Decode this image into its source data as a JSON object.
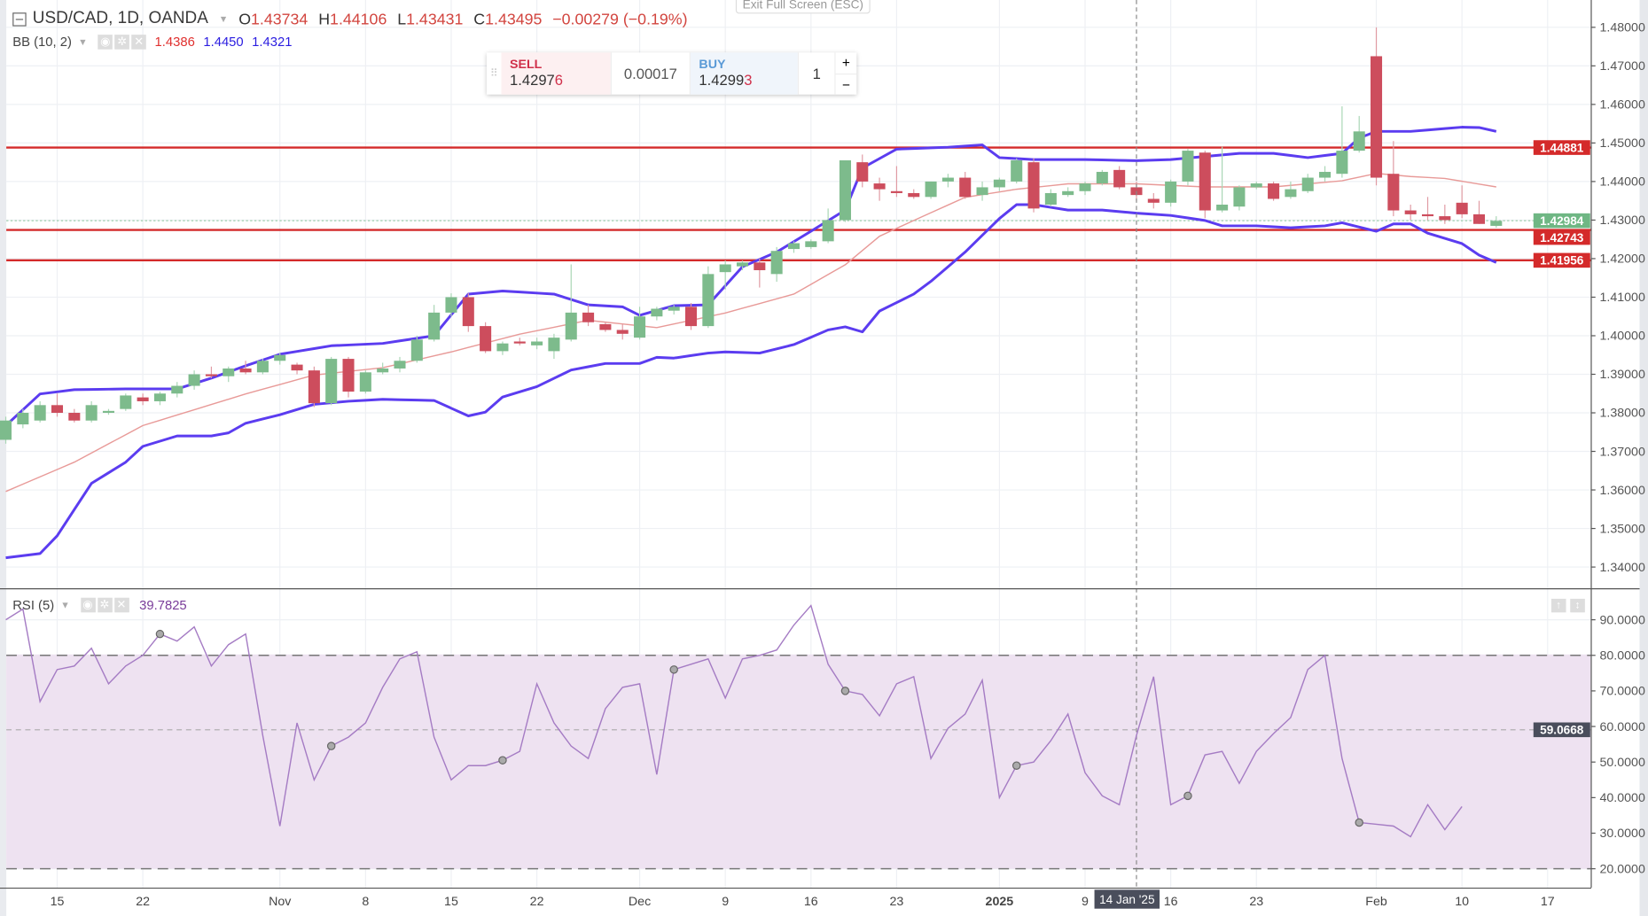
{
  "header": {
    "symbol": "USD/CAD, 1D, OANDA",
    "o_label": "O",
    "o": "1.43734",
    "h_label": "H",
    "h": "1.44106",
    "l_label": "L",
    "l": "1.43431",
    "c_label": "C",
    "c": "1.43495",
    "change": "−0.00279 (−0.19%)"
  },
  "exit_fullscreen": "Exit Full Screen (ESC)",
  "bb_legend": {
    "label": "BB (10, 2)",
    "mid": "1.4386",
    "upper": "1.4450",
    "lower": "1.4321"
  },
  "trade": {
    "sell_label": "SELL",
    "sell_main": "1.4297",
    "sell_last": "6",
    "spread": "0.00017",
    "buy_label": "BUY",
    "buy_main": "1.4299",
    "buy_last": "3",
    "qty": "1",
    "plus": "+",
    "minus": "−"
  },
  "colors": {
    "up": "#7dbb8c",
    "down": "#cd4d5d",
    "bb_band": "#5b3cf0",
    "bb_mid": "#e89a98",
    "level": "#d42a2a",
    "current": "#6fb784",
    "rsi_line": "#a57cc4",
    "rsi_fill": "#eee2f1"
  },
  "price_axis": [
    "1.48000",
    "1.47000",
    "1.46000",
    "1.45000",
    "1.44000",
    "1.43000",
    "1.42000",
    "1.41000",
    "1.40000",
    "1.39000",
    "1.38000",
    "1.37000",
    "1.36000",
    "1.35000",
    "1.34000"
  ],
  "levels": [
    {
      "value": 1.44881,
      "label": "1.44881"
    },
    {
      "value": 1.42743,
      "label": "1.42743"
    },
    {
      "value": 1.41956,
      "label": "1.41956"
    }
  ],
  "current_price": {
    "value": 1.42984,
    "label": "1.42984"
  },
  "candles": [
    [
      1.373,
      1.379,
      1.372,
      1.378
    ],
    [
      1.377,
      1.381,
      1.376,
      1.38
    ],
    [
      1.378,
      1.383,
      1.3775,
      1.382
    ],
    [
      1.382,
      1.385,
      1.379,
      1.38
    ],
    [
      1.38,
      1.381,
      1.3775,
      1.378
    ],
    [
      1.378,
      1.383,
      1.3775,
      1.382
    ],
    [
      1.38,
      1.381,
      1.3795,
      1.3805
    ],
    [
      1.381,
      1.385,
      1.3805,
      1.3845
    ],
    [
      1.384,
      1.385,
      1.382,
      1.383
    ],
    [
      1.383,
      1.3855,
      1.382,
      1.385
    ],
    [
      1.385,
      1.388,
      1.384,
      1.387
    ],
    [
      1.387,
      1.391,
      1.386,
      1.39
    ],
    [
      1.39,
      1.392,
      1.389,
      1.3895
    ],
    [
      1.3895,
      1.392,
      1.388,
      1.3915
    ],
    [
      1.3915,
      1.3935,
      1.39,
      1.3905
    ],
    [
      1.3905,
      1.394,
      1.39,
      1.3935
    ],
    [
      1.3935,
      1.3955,
      1.3925,
      1.395
    ],
    [
      1.3925,
      1.393,
      1.39,
      1.391
    ],
    [
      1.391,
      1.392,
      1.3815,
      1.3825
    ],
    [
      1.3825,
      1.3945,
      1.382,
      1.394
    ],
    [
      1.394,
      1.3945,
      1.384,
      1.3855
    ],
    [
      1.3855,
      1.391,
      1.385,
      1.3905
    ],
    [
      1.3905,
      1.393,
      1.39,
      1.3915
    ],
    [
      1.3915,
      1.3945,
      1.3905,
      1.3935
    ],
    [
      1.3935,
      1.4,
      1.393,
      1.399
    ],
    [
      1.399,
      1.408,
      1.3985,
      1.406
    ],
    [
      1.406,
      1.411,
      1.405,
      1.41
    ],
    [
      1.41,
      1.411,
      1.401,
      1.4025
    ],
    [
      1.4025,
      1.4035,
      1.3955,
      1.396
    ],
    [
      1.396,
      1.3985,
      1.395,
      1.398
    ],
    [
      1.3985,
      1.3995,
      1.3975,
      1.398
    ],
    [
      1.3975,
      1.3995,
      1.3965,
      1.3985
    ],
    [
      1.396,
      1.4005,
      1.394,
      1.3995
    ],
    [
      1.399,
      1.4185,
      1.3985,
      1.406
    ],
    [
      1.406,
      1.408,
      1.4025,
      1.4035
    ],
    [
      1.403,
      1.4035,
      1.401,
      1.4015
    ],
    [
      1.4015,
      1.403,
      1.399,
      1.4005
    ],
    [
      1.3995,
      1.4075,
      1.399,
      1.405
    ],
    [
      1.405,
      1.4075,
      1.404,
      1.407
    ],
    [
      1.4065,
      1.408,
      1.4055,
      1.4075
    ],
    [
      1.4075,
      1.4085,
      1.4015,
      1.4025
    ],
    [
      1.4025,
      1.418,
      1.402,
      1.416
    ],
    [
      1.4165,
      1.4195,
      1.412,
      1.4185
    ],
    [
      1.418,
      1.4195,
      1.417,
      1.419
    ],
    [
      1.419,
      1.42,
      1.4125,
      1.417
    ],
    [
      1.416,
      1.423,
      1.414,
      1.422
    ],
    [
      1.4225,
      1.4245,
      1.4215,
      1.424
    ],
    [
      1.423,
      1.425,
      1.4225,
      1.4245
    ],
    [
      1.4245,
      1.433,
      1.424,
      1.43
    ],
    [
      1.43,
      1.4455,
      1.4295,
      1.4455
    ],
    [
      1.445,
      1.447,
      1.4385,
      1.44
    ],
    [
      1.4395,
      1.441,
      1.435,
      1.438
    ],
    [
      1.4375,
      1.444,
      1.436,
      1.437
    ],
    [
      1.437,
      1.438,
      1.4355,
      1.436
    ],
    [
      1.436,
      1.44,
      1.4355,
      1.44
    ],
    [
      1.44,
      1.442,
      1.4385,
      1.441
    ],
    [
      1.441,
      1.4425,
      1.4355,
      1.436
    ],
    [
      1.4365,
      1.44,
      1.435,
      1.4385
    ],
    [
      1.4385,
      1.441,
      1.4375,
      1.4405
    ],
    [
      1.44,
      1.446,
      1.4395,
      1.4455
    ],
    [
      1.445,
      1.446,
      1.432,
      1.433
    ],
    [
      1.434,
      1.438,
      1.4335,
      1.437
    ],
    [
      1.4365,
      1.4385,
      1.436,
      1.4375
    ],
    [
      1.4375,
      1.44,
      1.4365,
      1.4395
    ],
    [
      1.4395,
      1.443,
      1.439,
      1.4425
    ],
    [
      1.443,
      1.444,
      1.438,
      1.4385
    ],
    [
      1.4385,
      1.44,
      1.435,
      1.4365
    ],
    [
      1.4355,
      1.437,
      1.433,
      1.4345
    ],
    [
      1.4345,
      1.4405,
      1.4335,
      1.44
    ],
    [
      1.44,
      1.4485,
      1.439,
      1.448
    ],
    [
      1.4475,
      1.448,
      1.4305,
      1.4325
    ],
    [
      1.4325,
      1.449,
      1.432,
      1.434
    ],
    [
      1.4335,
      1.439,
      1.4325,
      1.4385
    ],
    [
      1.4385,
      1.44,
      1.438,
      1.4395
    ],
    [
      1.4395,
      1.44,
      1.435,
      1.4355
    ],
    [
      1.436,
      1.44,
      1.4355,
      1.438
    ],
    [
      1.4375,
      1.442,
      1.437,
      1.441
    ],
    [
      1.441,
      1.444,
      1.44,
      1.4425
    ],
    [
      1.442,
      1.4595,
      1.441,
      1.448
    ],
    [
      1.448,
      1.457,
      1.4475,
      1.453
    ],
    [
      1.4725,
      1.48,
      1.439,
      1.441
    ],
    [
      1.442,
      1.4505,
      1.431,
      1.4325
    ],
    [
      1.4325,
      1.434,
      1.43,
      1.4315
    ],
    [
      1.4315,
      1.436,
      1.43,
      1.431
    ],
    [
      1.431,
      1.434,
      1.429,
      1.43
    ],
    [
      1.4345,
      1.439,
      1.4305,
      1.4315
    ],
    [
      1.4315,
      1.435,
      1.429,
      1.429
    ],
    [
      1.4285,
      1.431,
      1.428,
      1.4298
    ]
  ],
  "bb_upper": [
    [
      0,
      1.3767
    ],
    [
      2,
      1.3849
    ],
    [
      4,
      1.386
    ],
    [
      7,
      1.3862
    ],
    [
      10,
      1.3862
    ],
    [
      12,
      1.389
    ],
    [
      14,
      1.3922
    ],
    [
      16,
      1.3952
    ],
    [
      19,
      1.3974
    ],
    [
      22,
      1.398
    ],
    [
      25,
      1.4
    ],
    [
      27,
      1.4108
    ],
    [
      29,
      1.4116
    ],
    [
      32,
      1.4108
    ],
    [
      34,
      1.408
    ],
    [
      36,
      1.4075
    ],
    [
      37,
      1.4053
    ],
    [
      39,
      1.4078
    ],
    [
      41,
      1.408
    ],
    [
      43,
      1.4179
    ],
    [
      45,
      1.4217
    ],
    [
      47,
      1.4271
    ],
    [
      49,
      1.4326
    ],
    [
      50,
      1.4435
    ],
    [
      52,
      1.4484
    ],
    [
      55,
      1.4489
    ],
    [
      57,
      1.4495
    ],
    [
      58,
      1.4462
    ],
    [
      60,
      1.4457
    ],
    [
      63,
      1.4457
    ],
    [
      66,
      1.4454
    ],
    [
      68,
      1.4457
    ],
    [
      70,
      1.4465
    ],
    [
      72,
      1.4473
    ],
    [
      74,
      1.4473
    ],
    [
      76,
      1.4462
    ],
    [
      78,
      1.4473
    ],
    [
      79,
      1.4513
    ],
    [
      80,
      1.453
    ],
    [
      82,
      1.453
    ],
    [
      85,
      1.4541
    ],
    [
      86,
      1.454
    ],
    [
      87,
      1.453
    ]
  ],
  "bb_middle": [
    [
      0,
      1.3596
    ],
    [
      4,
      1.3672
    ],
    [
      8,
      1.3767
    ],
    [
      14,
      1.3849
    ],
    [
      18,
      1.3898
    ],
    [
      22,
      1.3917
    ],
    [
      26,
      1.3958
    ],
    [
      30,
      1.4004
    ],
    [
      34,
      1.404
    ],
    [
      38,
      1.4021
    ],
    [
      42,
      1.4059
    ],
    [
      46,
      1.4108
    ],
    [
      49,
      1.4184
    ],
    [
      51,
      1.4258
    ],
    [
      53,
      1.4299
    ],
    [
      56,
      1.4359
    ],
    [
      59,
      1.438
    ],
    [
      62,
      1.4394
    ],
    [
      66,
      1.4394
    ],
    [
      70,
      1.4386
    ],
    [
      74,
      1.4386
    ],
    [
      78,
      1.4402
    ],
    [
      80,
      1.4421
    ],
    [
      82,
      1.4413
    ],
    [
      84,
      1.4408
    ],
    [
      87,
      1.4386
    ]
  ],
  "bb_lower": [
    [
      0,
      1.3424
    ],
    [
      2,
      1.3435
    ],
    [
      3,
      1.3481
    ],
    [
      5,
      1.3617
    ],
    [
      7,
      1.3672
    ],
    [
      8,
      1.3713
    ],
    [
      10,
      1.374
    ],
    [
      12,
      1.374
    ],
    [
      13,
      1.3748
    ],
    [
      14,
      1.3773
    ],
    [
      16,
      1.3795
    ],
    [
      18,
      1.3822
    ],
    [
      20,
      1.383
    ],
    [
      22,
      1.3835
    ],
    [
      25,
      1.3832
    ],
    [
      27,
      1.3792
    ],
    [
      28,
      1.3802
    ],
    [
      29,
      1.3841
    ],
    [
      31,
      1.3868
    ],
    [
      33,
      1.3911
    ],
    [
      35,
      1.3928
    ],
    [
      37,
      1.3928
    ],
    [
      38,
      1.3944
    ],
    [
      39,
      1.3942
    ],
    [
      41,
      1.3955
    ],
    [
      42,
      1.3958
    ],
    [
      44,
      1.3955
    ],
    [
      46,
      1.3977
    ],
    [
      48,
      1.4015
    ],
    [
      49,
      1.4023
    ],
    [
      50,
      1.401
    ],
    [
      51,
      1.4064
    ],
    [
      53,
      1.4108
    ],
    [
      54,
      1.4141
    ],
    [
      56,
      1.4217
    ],
    [
      58,
      1.4304
    ],
    [
      59,
      1.434
    ],
    [
      60,
      1.434
    ],
    [
      62,
      1.4326
    ],
    [
      64,
      1.4326
    ],
    [
      66,
      1.4318
    ],
    [
      68,
      1.4312
    ],
    [
      70,
      1.4299
    ],
    [
      71,
      1.4285
    ],
    [
      73,
      1.4285
    ],
    [
      75,
      1.428
    ],
    [
      77,
      1.4285
    ],
    [
      78,
      1.4293
    ],
    [
      80,
      1.4271
    ],
    [
      81,
      1.429
    ],
    [
      82,
      1.429
    ],
    [
      83,
      1.4266
    ],
    [
      85,
      1.4239
    ],
    [
      86,
      1.4209
    ],
    [
      87,
      1.419
    ]
  ],
  "rsi": {
    "label": "RSI (5)",
    "value": "39.7825",
    "axis": [
      "90.0000",
      "80.0000",
      "70.0000",
      "60.0000",
      "50.0000",
      "40.0000",
      "30.0000",
      "20.0000"
    ],
    "overbought": 80,
    "oversold": 20,
    "marker_level": {
      "value": 59.0668,
      "label": "59.0668"
    },
    "values": [
      90,
      93,
      67,
      76,
      77,
      82,
      72,
      77,
      80,
      86,
      84,
      88,
      77,
      83,
      86,
      57.5,
      32,
      61,
      45,
      54.5,
      57,
      61,
      71,
      79,
      81,
      57,
      45,
      49,
      49,
      50.5,
      53,
      72,
      61,
      54.5,
      51,
      65,
      71,
      72,
      46.5,
      76,
      77.5,
      79,
      68,
      79,
      80,
      81.5,
      88.5,
      94,
      77.5,
      70,
      69,
      63,
      72,
      74,
      51,
      59.5,
      63.5,
      73,
      40,
      49,
      50,
      56,
      63.5,
      47,
      40.5,
      38,
      57.5,
      74,
      38,
      40.5,
      52,
      53,
      44,
      53,
      58,
      62.5,
      76,
      80,
      51,
      33,
      32.5,
      32,
      29,
      38,
      31,
      37.5
    ],
    "markers": [
      9,
      19,
      29,
      39,
      49,
      59,
      69,
      79
    ]
  },
  "time_axis": [
    {
      "text": "15",
      "bar": 3
    },
    {
      "text": "22",
      "bar": 8
    },
    {
      "text": "Nov",
      "bar": 16
    },
    {
      "text": "8",
      "bar": 21
    },
    {
      "text": "15",
      "bar": 26
    },
    {
      "text": "22",
      "bar": 31
    },
    {
      "text": "Dec",
      "bar": 37
    },
    {
      "text": "9",
      "bar": 42
    },
    {
      "text": "16",
      "bar": 47
    },
    {
      "text": "23",
      "bar": 52
    },
    {
      "text": "2025",
      "bar": 58,
      "bold": true
    },
    {
      "text": "9",
      "bar": 63
    },
    {
      "text": "16",
      "bar": 68
    },
    {
      "text": "23",
      "bar": 73
    },
    {
      "text": "Feb",
      "bar": 80
    },
    {
      "text": "10",
      "bar": 85
    },
    {
      "text": "17",
      "bar": 90
    }
  ],
  "crosshair": {
    "bar": 66,
    "label": "14 Jan '25"
  }
}
